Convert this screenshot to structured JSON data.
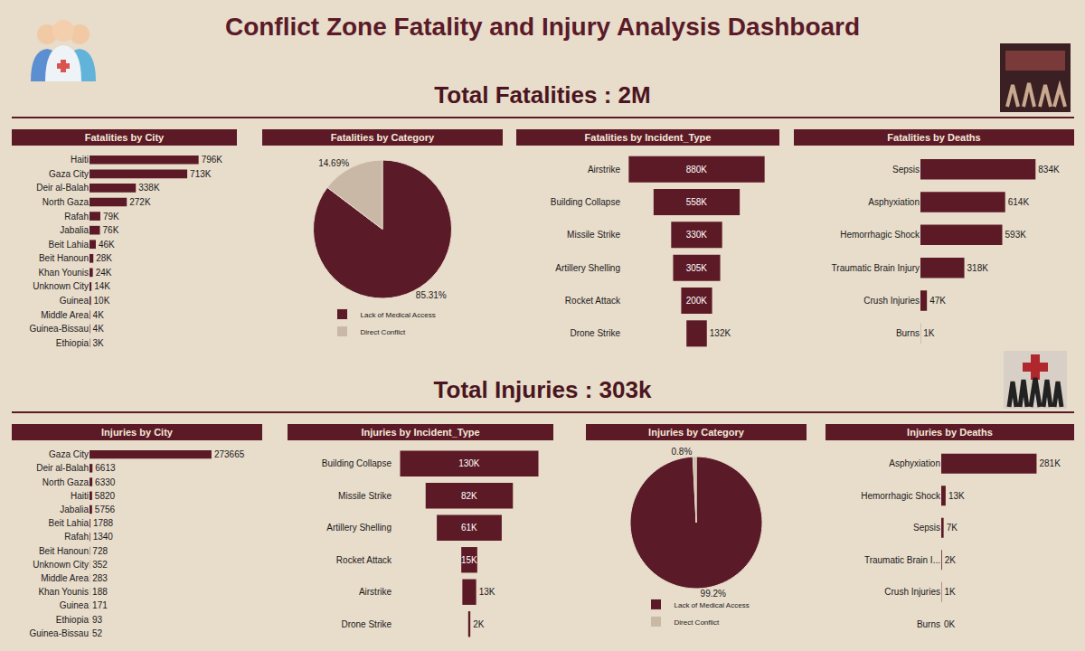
{
  "title": "Conflict Zone Fatality and Injury Analysis Dashboard",
  "headings": [
    "Total Fatalities : 2M",
    "Total Injuries : 303k"
  ],
  "chart_data": [
    {
      "type": "bar",
      "title": "Fatalities by City",
      "orientation": "horizontal",
      "tick_labels": "y",
      "data_labels": true,
      "color": "#5c1a26",
      "categories": [
        "Haiti",
        "Gaza City",
        "Deir al-Balah",
        "North Gaza",
        "Rafah",
        "Jabalia",
        "Beit Lahia",
        "Beit Hanoun",
        "Khan Younis",
        "Unknown City",
        "Guinea",
        "Middle Area",
        "Guinea-Bissau",
        "Ethiopia"
      ],
      "values": [
        796000,
        713000,
        338000,
        272000,
        79000,
        76000,
        46000,
        28000,
        24000,
        14000,
        10000,
        4000,
        4000,
        3000
      ],
      "value_labels": [
        "796K",
        "713K",
        "338K",
        "272K",
        "79K",
        "76K",
        "46K",
        "28K",
        "24K",
        "14K",
        "10K",
        "4K",
        "4K",
        "3K"
      ]
    },
    {
      "type": "pie",
      "title": "Fatalities by Category",
      "data_labels": true,
      "legend": "bottom",
      "categories": [
        "Lack of Medical Access",
        "Direct Conflict"
      ],
      "values": [
        85.31,
        14.69
      ],
      "value_labels": [
        "85.31%",
        "14.69%"
      ],
      "colors": [
        "#5a1a27",
        "#c9b8a6"
      ]
    },
    {
      "type": "funnel",
      "title": "Fatalities by Incident_Type",
      "orientation": "horizontal",
      "tick_labels": "y",
      "data_labels": true,
      "color": "#5c1a26",
      "categories": [
        "Airstrike",
        "Building Collapse",
        "Missile Strike",
        "Artillery Shelling",
        "Rocket Attack",
        "Drone Strike"
      ],
      "values": [
        880000,
        558000,
        330000,
        305000,
        200000,
        132000
      ],
      "value_labels": [
        "880K",
        "558K",
        "330K",
        "305K",
        "200K",
        "132K"
      ]
    },
    {
      "type": "bar",
      "title": "Fatalities by Deaths",
      "orientation": "horizontal",
      "tick_labels": "y",
      "data_labels": true,
      "color": "#5c1a26",
      "categories": [
        "Sepsis",
        "Asphyxiation",
        "Hemorrhagic Shock",
        "Traumatic Brain Injury",
        "Crush Injuries",
        "Burns"
      ],
      "values": [
        834000,
        614000,
        593000,
        318000,
        47000,
        1000
      ],
      "value_labels": [
        "834K",
        "614K",
        "593K",
        "318K",
        "47K",
        "1K"
      ]
    },
    {
      "type": "bar",
      "title": "Injuries by City",
      "orientation": "horizontal",
      "tick_labels": "y",
      "data_labels": true,
      "color": "#5c1a26",
      "categories": [
        "Gaza City",
        "Deir al-Balah",
        "North Gaza",
        "Haiti",
        "Jabalia",
        "Beit Lahia",
        "Rafah",
        "Beit Hanoun",
        "Unknown City",
        "Middle Area",
        "Khan Younis",
        "Guinea",
        "Ethiopia",
        "Guinea-Bissau"
      ],
      "values": [
        273665,
        6613,
        6330,
        5820,
        5756,
        1788,
        1340,
        728,
        352,
        283,
        188,
        171,
        93,
        52
      ]
    },
    {
      "type": "funnel",
      "title": "Injuries by Incident_Type",
      "orientation": "horizontal",
      "tick_labels": "y",
      "data_labels": true,
      "color": "#5c1a26",
      "categories": [
        "Building Collapse",
        "Missile Strike",
        "Artillery Shelling",
        "Rocket Attack",
        "Airstrike",
        "Drone Strike"
      ],
      "values": [
        130000,
        82000,
        61000,
        15000,
        13000,
        2000
      ],
      "value_labels": [
        "130K",
        "82K",
        "61K",
        "15K",
        "13K",
        "2K"
      ]
    },
    {
      "type": "pie",
      "title": "Injuries by Category",
      "data_labels": true,
      "legend": "bottom",
      "categories": [
        "Lack of Medical Access",
        "Direct Conflict"
      ],
      "values": [
        99.2,
        0.8
      ],
      "value_labels": [
        "99.2%",
        "0.8%"
      ],
      "colors": [
        "#5a1a27",
        "#c9b8a6"
      ]
    },
    {
      "type": "bar",
      "title": "Injuries by Deaths",
      "orientation": "horizontal",
      "tick_labels": "y",
      "data_labels": true,
      "color": "#5c1a26",
      "categories": [
        "Asphyxiation",
        "Hemorrhagic Shock",
        "Sepsis",
        "Traumatic Brain I...",
        "Crush Injuries",
        "Burns"
      ],
      "values": [
        281000,
        13000,
        7000,
        2000,
        1000,
        0
      ],
      "value_labels": [
        "281K",
        "13K",
        "7K",
        "2K",
        "1K",
        "0K"
      ]
    }
  ]
}
